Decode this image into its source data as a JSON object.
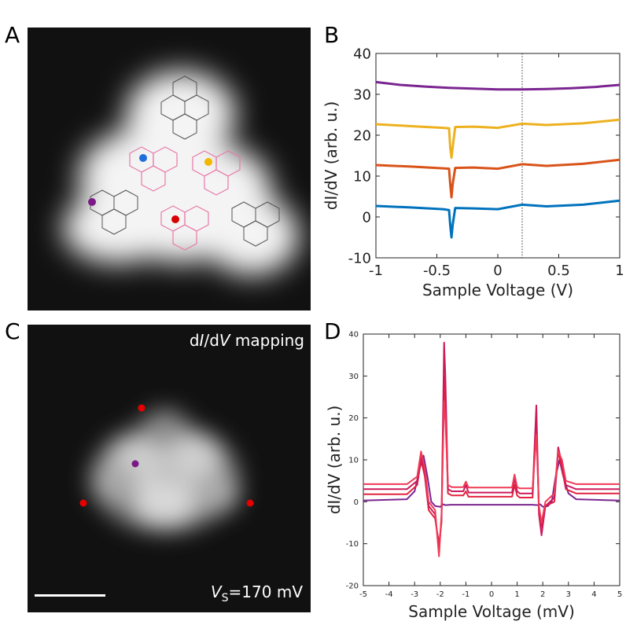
{
  "panels": {
    "a": {
      "letter": "A"
    },
    "b": {
      "letter": "B"
    },
    "c": {
      "letter": "C",
      "mapping_pre": "d",
      "mapping_italic1": "I",
      "mapping_mid": "/d",
      "mapping_italic2": "V",
      "mapping_post": " mapping",
      "bias_italic": "V",
      "bias_sub": "S",
      "bias_value": "=170 mV"
    },
    "d": {
      "letter": "D"
    }
  },
  "colors": {
    "purple": "#7b2590",
    "yellow": "#edb120",
    "orange": "#d95319",
    "blue": "#0072bd",
    "red": "#e3002a",
    "pink": "#ef7fb0",
    "crimson": "#e0184f"
  },
  "chart_data": [
    {
      "type": "line",
      "panel": "B",
      "xlabel": "Sample Voltage (V)",
      "ylabel": "dI/dV (arb. u.)",
      "xlim": [
        -1,
        1
      ],
      "ylim": [
        -10,
        40
      ],
      "xticks": [
        "-1",
        "-0.5",
        "0",
        "0.5",
        "1"
      ],
      "yticks": [
        "-10",
        "0",
        "10",
        "20",
        "30",
        "40"
      ],
      "vline_x": 0.2,
      "series": [
        {
          "name": "purple",
          "color": "#7b2590",
          "x": [
            -1,
            -0.8,
            -0.6,
            -0.4,
            -0.2,
            0,
            0.2,
            0.4,
            0.6,
            0.8,
            1
          ],
          "y": [
            33,
            32.3,
            31.9,
            31.6,
            31.4,
            31.2,
            31.2,
            31.3,
            31.5,
            31.8,
            32.3
          ]
        },
        {
          "name": "yellow",
          "color": "#edb120",
          "x": [
            -1,
            -0.7,
            -0.45,
            -0.4,
            -0.39,
            -0.38,
            -0.37,
            -0.35,
            -0.2,
            0,
            0.2,
            0.4,
            0.7,
            1
          ],
          "y": [
            22.7,
            22.2,
            21.8,
            21.7,
            17,
            14.5,
            17,
            22,
            22.1,
            21.8,
            22.8,
            22.5,
            22.9,
            23.8
          ]
        },
        {
          "name": "orange",
          "color": "#d95319",
          "x": [
            -1,
            -0.7,
            -0.45,
            -0.4,
            -0.39,
            -0.38,
            -0.37,
            -0.35,
            -0.2,
            0,
            0.2,
            0.4,
            0.7,
            1
          ],
          "y": [
            12.7,
            12.3,
            11.9,
            11.8,
            8,
            4.8,
            8,
            12,
            12.1,
            11.8,
            12.9,
            12.5,
            13,
            14
          ]
        },
        {
          "name": "blue",
          "color": "#0072bd",
          "x": [
            -1,
            -0.7,
            -0.45,
            -0.4,
            -0.39,
            -0.38,
            -0.37,
            -0.35,
            -0.2,
            0,
            0.2,
            0.4,
            0.7,
            1
          ],
          "y": [
            2.7,
            2.3,
            1.9,
            1.7,
            -2,
            -5,
            -2,
            2.2,
            2.1,
            1.9,
            3,
            2.6,
            3,
            4
          ]
        }
      ]
    },
    {
      "type": "line",
      "panel": "D",
      "xlabel": "Sample Voltage (mV)",
      "ylabel": "dI/dV (arb. u.)",
      "xlim": [
        -5,
        5
      ],
      "ylim": [
        -20,
        40
      ],
      "xticks": [
        "-5",
        "-4",
        "-3",
        "-2",
        "-1",
        "0",
        "1",
        "2",
        "3",
        "4",
        "5"
      ],
      "yticks": [
        "-20",
        "-10",
        "0",
        "10",
        "20",
        "30",
        "40"
      ],
      "series": [
        {
          "name": "purple",
          "color": "#7b2590",
          "x": [
            -5,
            -3.3,
            -3.0,
            -2.8,
            -2.65,
            -2.5,
            -2.35,
            -2.2,
            -2.0,
            -1.9,
            -1.8,
            -1.6,
            1.6,
            1.8,
            1.9,
            2.0,
            2.2,
            2.35,
            2.5,
            2.65,
            2.8,
            3.0,
            3.3,
            5
          ],
          "y": [
            0.3,
            0.6,
            2.5,
            8,
            11,
            6,
            0,
            -1,
            -1.2,
            -0.6,
            -0.8,
            -0.7,
            -0.7,
            -0.8,
            -0.6,
            -1.2,
            -1,
            0,
            6,
            10,
            6,
            2,
            0.6,
            0.3
          ]
        },
        {
          "name": "red-1",
          "color": "#e3223f",
          "x": [
            -5,
            -3.3,
            -2.9,
            -2.75,
            -2.6,
            -2.45,
            -2.2,
            -2.05,
            -1.95,
            -1.85,
            -1.8,
            -1.7,
            -1.55,
            -1.1,
            -1.0,
            -0.9,
            0.8,
            0.9,
            1.0,
            1.1,
            1.6,
            1.75,
            1.85,
            1.95,
            2.1,
            2.45,
            2.6,
            2.75,
            2.9,
            3.3,
            5
          ],
          "y": [
            1.8,
            1.8,
            4,
            10,
            6,
            -2,
            -4,
            -10,
            -5,
            30,
            24,
            2,
            1.5,
            1.5,
            2.5,
            1.2,
            1.2,
            4,
            1.5,
            1,
            1,
            20,
            -2,
            -6,
            -1,
            0,
            12,
            8,
            3,
            2,
            2
          ]
        },
        {
          "name": "red-2",
          "color": "#cc1a5a",
          "x": [
            -5,
            -3.3,
            -2.9,
            -2.75,
            -2.6,
            -2.45,
            -2.2,
            -2.05,
            -1.95,
            -1.85,
            -1.8,
            -1.7,
            -1.55,
            -1.1,
            -1.0,
            -0.9,
            0.8,
            0.9,
            1.0,
            1.1,
            1.6,
            1.75,
            1.85,
            1.95,
            2.1,
            2.45,
            2.6,
            2.75,
            2.9,
            3.3,
            5
          ],
          "y": [
            3,
            3,
            5,
            11,
            7,
            -1,
            -3,
            -12,
            -4,
            38,
            30,
            3,
            2.5,
            2.5,
            4,
            2.2,
            2.2,
            5.5,
            2.5,
            2,
            2,
            23,
            -3,
            -8,
            -1,
            1,
            13,
            9,
            4,
            3,
            3
          ]
        },
        {
          "name": "red-3",
          "color": "#f03a55",
          "x": [
            -5,
            -3.3,
            -2.9,
            -2.75,
            -2.6,
            -2.45,
            -2.2,
            -2.05,
            -1.95,
            -1.85,
            -1.8,
            -1.7,
            -1.55,
            -1.1,
            -1.0,
            -0.9,
            0.8,
            0.9,
            1.0,
            1.1,
            1.6,
            1.75,
            1.85,
            1.95,
            2.1,
            2.45,
            2.6,
            2.75,
            2.9,
            3.3,
            5
          ],
          "y": [
            4.2,
            4.2,
            6,
            12,
            8,
            0,
            -2,
            -13,
            -3,
            24,
            20,
            4,
            3.5,
            3.5,
            4.8,
            3.4,
            3.4,
            6.5,
            3.5,
            3.2,
            3.2,
            16,
            -1,
            -5,
            0,
            2,
            12,
            10,
            5,
            4.2,
            4.2
          ]
        }
      ]
    }
  ],
  "scale_bar": "scale bar"
}
